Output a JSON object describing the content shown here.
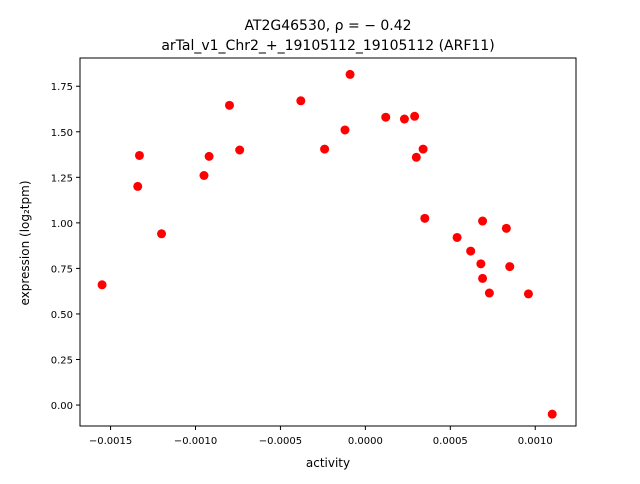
{
  "chart_data": {
    "type": "scatter",
    "title_line1": "AT2G46530, ρ = − 0.42",
    "title_line2": "arTal_v1_Chr2_+_19105112_19105112 (ARF11)",
    "xlabel": "activity",
    "ylabel": "expression (log₂tpm)",
    "xlim": [
      -0.00168,
      0.00124
    ],
    "ylim": [
      -0.115,
      1.905
    ],
    "x_ticks": [
      -0.0015,
      -0.001,
      -0.0005,
      0.0,
      0.0005,
      0.001
    ],
    "x_tick_labels": [
      "−0.0015",
      "−0.0010",
      "−0.0005",
      "0.0000",
      "0.0005",
      "0.0010"
    ],
    "y_ticks": [
      0.0,
      0.25,
      0.5,
      0.75,
      1.0,
      1.25,
      1.5,
      1.75
    ],
    "y_tick_labels": [
      "0.00",
      "0.25",
      "0.50",
      "0.75",
      "1.00",
      "1.25",
      "1.50",
      "1.75"
    ],
    "grid": false,
    "marker_color": "#ff0000",
    "points": [
      {
        "x": -0.00155,
        "y": 0.66
      },
      {
        "x": -0.00134,
        "y": 1.2
      },
      {
        "x": -0.00133,
        "y": 1.37
      },
      {
        "x": -0.0012,
        "y": 0.94
      },
      {
        "x": -0.00095,
        "y": 1.26
      },
      {
        "x": -0.00092,
        "y": 1.365
      },
      {
        "x": -0.0008,
        "y": 1.645
      },
      {
        "x": -0.00074,
        "y": 1.4
      },
      {
        "x": -0.00038,
        "y": 1.67
      },
      {
        "x": -0.00024,
        "y": 1.405
      },
      {
        "x": -0.00012,
        "y": 1.51
      },
      {
        "x": -9e-05,
        "y": 1.815
      },
      {
        "x": 0.00012,
        "y": 1.58
      },
      {
        "x": 0.00023,
        "y": 1.57
      },
      {
        "x": 0.00029,
        "y": 1.585
      },
      {
        "x": 0.0003,
        "y": 1.36
      },
      {
        "x": 0.00034,
        "y": 1.405
      },
      {
        "x": 0.00035,
        "y": 1.025
      },
      {
        "x": 0.00054,
        "y": 0.92
      },
      {
        "x": 0.00062,
        "y": 0.845
      },
      {
        "x": 0.00069,
        "y": 1.01
      },
      {
        "x": 0.00068,
        "y": 0.775
      },
      {
        "x": 0.00069,
        "y": 0.695
      },
      {
        "x": 0.00073,
        "y": 0.615
      },
      {
        "x": 0.00083,
        "y": 0.97
      },
      {
        "x": 0.00085,
        "y": 0.76
      },
      {
        "x": 0.00096,
        "y": 0.61
      },
      {
        "x": 0.0011,
        "y": -0.05
      }
    ]
  }
}
